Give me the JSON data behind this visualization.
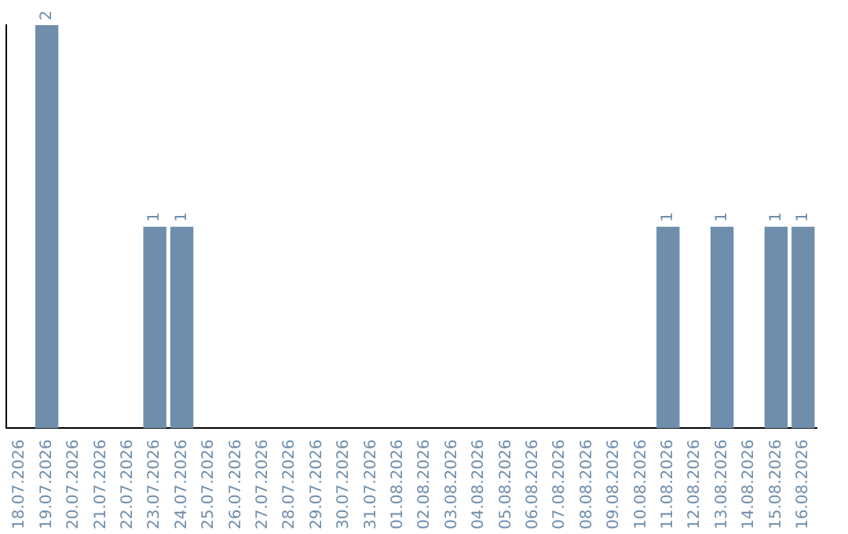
{
  "chart_data": {
    "type": "bar",
    "categories": [
      "18.07.2026",
      "19.07.2026",
      "20.07.2026",
      "21.07.2026",
      "22.07.2026",
      "23.07.2026",
      "24.07.2026",
      "25.07.2026",
      "26.07.2026",
      "27.07.2026",
      "28.07.2026",
      "29.07.2026",
      "30.07.2026",
      "31.07.2026",
      "01.08.2026",
      "02.08.2026",
      "03.08.2026",
      "04.08.2026",
      "05.08.2026",
      "06.08.2026",
      "07.08.2026",
      "08.08.2026",
      "09.08.2026",
      "10.08.2026",
      "11.08.2026",
      "12.08.2026",
      "13.08.2026",
      "14.08.2026",
      "15.08.2026",
      "16.08.2026"
    ],
    "values": [
      0,
      2,
      0,
      0,
      0,
      1,
      1,
      0,
      0,
      0,
      0,
      0,
      0,
      0,
      0,
      0,
      0,
      0,
      0,
      0,
      0,
      0,
      0,
      0,
      1,
      0,
      1,
      0,
      1,
      1
    ],
    "value_labels": [
      null,
      "2",
      null,
      null,
      null,
      "1",
      "1",
      null,
      null,
      null,
      null,
      null,
      null,
      null,
      null,
      null,
      null,
      null,
      null,
      null,
      null,
      null,
      null,
      null,
      "1",
      null,
      "1",
      null,
      "1",
      "1"
    ],
    "color": "#6e8eac",
    "grid": false,
    "legend": false,
    "tick_labels": "x"
  }
}
